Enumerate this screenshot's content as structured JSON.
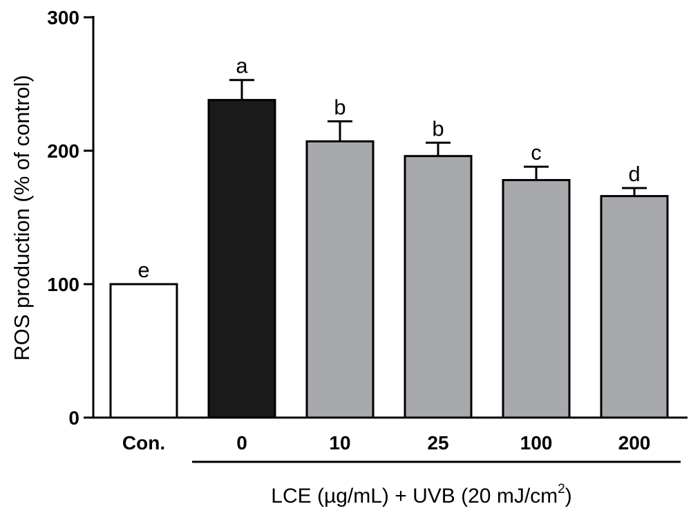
{
  "chart_data": {
    "type": "bar",
    "ylabel": "ROS production (% of control)",
    "ylim": [
      0,
      300
    ],
    "yticks": [
      0,
      100,
      200,
      300
    ],
    "categories": [
      "Con.",
      "0",
      "10",
      "25",
      "100",
      "200"
    ],
    "values": [
      100,
      238,
      207,
      196,
      178,
      166
    ],
    "errors": [
      0,
      15,
      15,
      10,
      10,
      6
    ],
    "significance": [
      "e",
      "a",
      "b",
      "b",
      "c",
      "d"
    ],
    "bar_colors": [
      "#ffffff",
      "#1a1a1a",
      "#a8a9ad",
      "#a8a9ad",
      "#a8a9ad",
      "#a8a9ad"
    ],
    "group_label": {
      "text": "LCE (µg/mL) + UVB (20 mJ/cm",
      "superscript": "2",
      "closing": ")"
    },
    "grid": false,
    "legend": "none"
  }
}
